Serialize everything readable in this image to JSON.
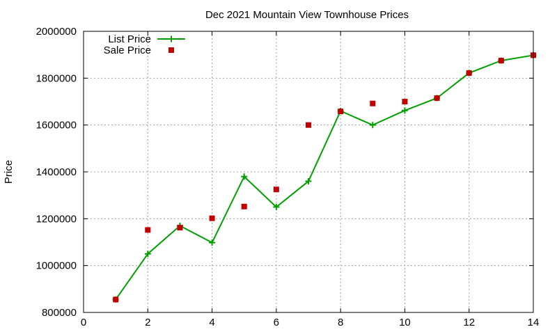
{
  "chart_data": {
    "type": "line",
    "title": "Dec 2021 Mountain View Townhouse Prices",
    "xlabel": "",
    "ylabel": "Price",
    "xlim": [
      0,
      14
    ],
    "ylim": [
      800000,
      2000000
    ],
    "x_ticks": [
      "0",
      "2",
      "4",
      "6",
      "8",
      "10",
      "12",
      "14"
    ],
    "y_ticks": [
      "800000",
      "1000000",
      "1200000",
      "1400000",
      "1600000",
      "1800000",
      "2000000"
    ],
    "grid": true,
    "legend_position": "top-left",
    "series": [
      {
        "name": "List Price",
        "style": "line-plus",
        "color": "#00a000",
        "x": [
          1,
          2,
          3,
          4,
          5,
          6,
          7,
          8,
          9,
          10,
          11,
          12,
          13,
          14
        ],
        "values": [
          855000,
          1050000,
          1170000,
          1098000,
          1380000,
          1250000,
          1360000,
          1660000,
          1600000,
          1662000,
          1715000,
          1822000,
          1875000,
          1898000
        ]
      },
      {
        "name": "Sale Price",
        "style": "points-square",
        "color": "#c00000",
        "x": [
          1,
          2,
          3,
          4,
          5,
          6,
          7,
          8,
          9,
          10,
          11,
          12,
          13,
          14
        ],
        "values": [
          855000,
          1152000,
          1162000,
          1202000,
          1252000,
          1325000,
          1600000,
          1658000,
          1692000,
          1700000,
          1715000,
          1822000,
          1875000,
          1898000
        ]
      }
    ]
  }
}
